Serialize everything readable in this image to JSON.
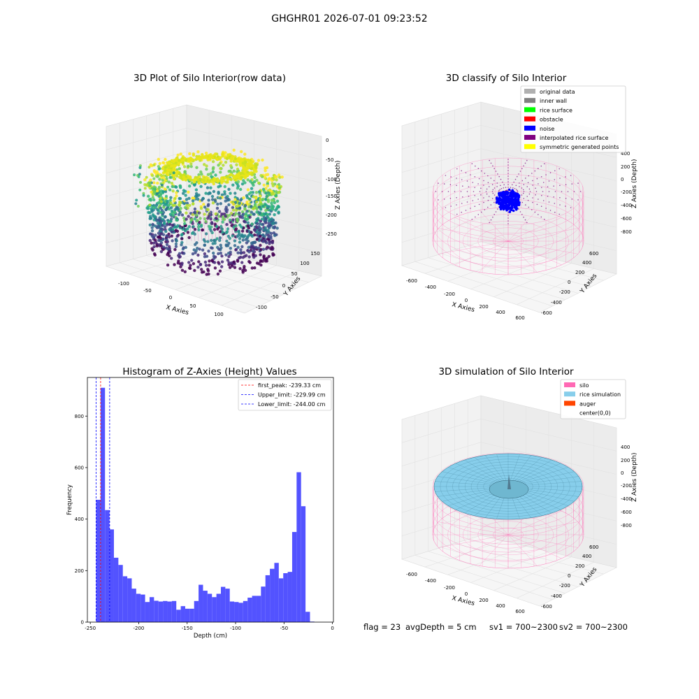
{
  "suptitle": "GHGHR01 2026-07-01 09:23:52",
  "footer": {
    "flag": "flag = 23",
    "avg_depth": "avgDepth = 5 cm",
    "sv1": "sv1 = 700~2300",
    "sv2": "sv2 = 700~2300"
  },
  "colors": {
    "hist_bar": "#5050ff",
    "first_peak": "#ff0000",
    "limits": "#0000ff",
    "silo": "#ff69b4",
    "rice_simulation": "#87ceeb",
    "auger": "#ff4500",
    "noise": "#0000ff"
  },
  "chart_data": [
    {
      "type": "scatter",
      "projection": "3d",
      "title": "3D Plot of Silo Interior(row data)",
      "xlabel": "X Axies",
      "ylabel": "Y Axies",
      "zlabel": "Z Axies (Depth)",
      "x_ticks": [
        "-100",
        "-50",
        "0",
        "50",
        "100"
      ],
      "y_ticks": [
        "-100",
        "-50",
        "0",
        "50",
        "100",
        "150"
      ],
      "z_ticks": [
        "0",
        "-50",
        "-100",
        "-150",
        "-200",
        "-250"
      ],
      "colormap": "viridis",
      "xlim": [
        -130,
        120
      ],
      "ylim": [
        -120,
        160
      ],
      "zlim": [
        -260,
        0
      ]
    },
    {
      "type": "scatter",
      "projection": "3d",
      "title": "3D classify of Silo Interior",
      "xlabel": "X Axies",
      "ylabel": "Y Axies",
      "zlabel": "Z Axies (Depth)",
      "x_ticks": [
        "-600",
        "-400",
        "-200",
        "0",
        "200",
        "400",
        "600"
      ],
      "y_ticks": [
        "-600",
        "-400",
        "-200",
        "0",
        "200",
        "400",
        "600"
      ],
      "z_ticks": [
        "400",
        "200",
        "0",
        "-200",
        "-400",
        "-600",
        "-800"
      ],
      "legend": [
        {
          "label": "original data",
          "color": "#b0b0b0"
        },
        {
          "label": "inner wall",
          "color": "#808080"
        },
        {
          "label": "rice surface",
          "color": "#00ff00"
        },
        {
          "label": "obstacle",
          "color": "#ff0000"
        },
        {
          "label": "noise",
          "color": "#0000ff"
        },
        {
          "label": "interpolated rice surface",
          "color": "#800080"
        },
        {
          "label": "symmetric generated points",
          "color": "#ffff00"
        }
      ]
    },
    {
      "type": "bar",
      "title": "Histogram of Z-Axies (Height) Values",
      "xlabel": "Depth (cm)",
      "ylabel": "Frequency",
      "xlim": [
        -253,
        1
      ],
      "ylim": [
        0,
        950
      ],
      "x_ticks": [
        -250,
        -200,
        -150,
        -100,
        -50,
        0
      ],
      "y_ticks": [
        0,
        200,
        400,
        600,
        800
      ],
      "bin_start": -244,
      "bin_width": 4.6,
      "values": [
        475,
        910,
        435,
        360,
        250,
        222,
        178,
        170,
        130,
        110,
        107,
        78,
        97,
        83,
        80,
        82,
        80,
        82,
        48,
        62,
        52,
        52,
        82,
        145,
        122,
        110,
        97,
        110,
        137,
        130,
        80,
        78,
        75,
        82,
        95,
        102,
        102,
        138,
        182,
        207,
        230,
        170,
        190,
        195,
        350,
        582,
        450,
        40,
        2
      ],
      "lines": [
        {
          "label": "first_peak: -239.33 cm",
          "x": -239.33,
          "color": "#ff0000"
        },
        {
          "label": "Upper_limit: -229.99 cm",
          "x": -229.99,
          "color": "#0000ff"
        },
        {
          "label": "Lower_limit: -244.00 cm",
          "x": -244.0,
          "color": "#0000ff"
        }
      ]
    },
    {
      "type": "surface",
      "projection": "3d",
      "title": "3D simulation of Silo Interior",
      "xlabel": "X Axies",
      "ylabel": "Y Axies",
      "zlabel": "Z Axies (Depth)",
      "x_ticks": [
        "-600",
        "-400",
        "-200",
        "0",
        "200",
        "400",
        "600"
      ],
      "y_ticks": [
        "-600",
        "-400",
        "-200",
        "0",
        "200",
        "400",
        "600"
      ],
      "z_ticks": [
        "400",
        "200",
        "0",
        "-200",
        "-400",
        "-600",
        "-800"
      ],
      "legend": [
        {
          "label": "silo",
          "color": "#ff69b4"
        },
        {
          "label": "rice simulation",
          "color": "#87ceeb"
        },
        {
          "label": "auger",
          "color": "#ff4500"
        },
        {
          "label": "center(0,0)",
          "color": "#ffffff"
        }
      ]
    }
  ]
}
